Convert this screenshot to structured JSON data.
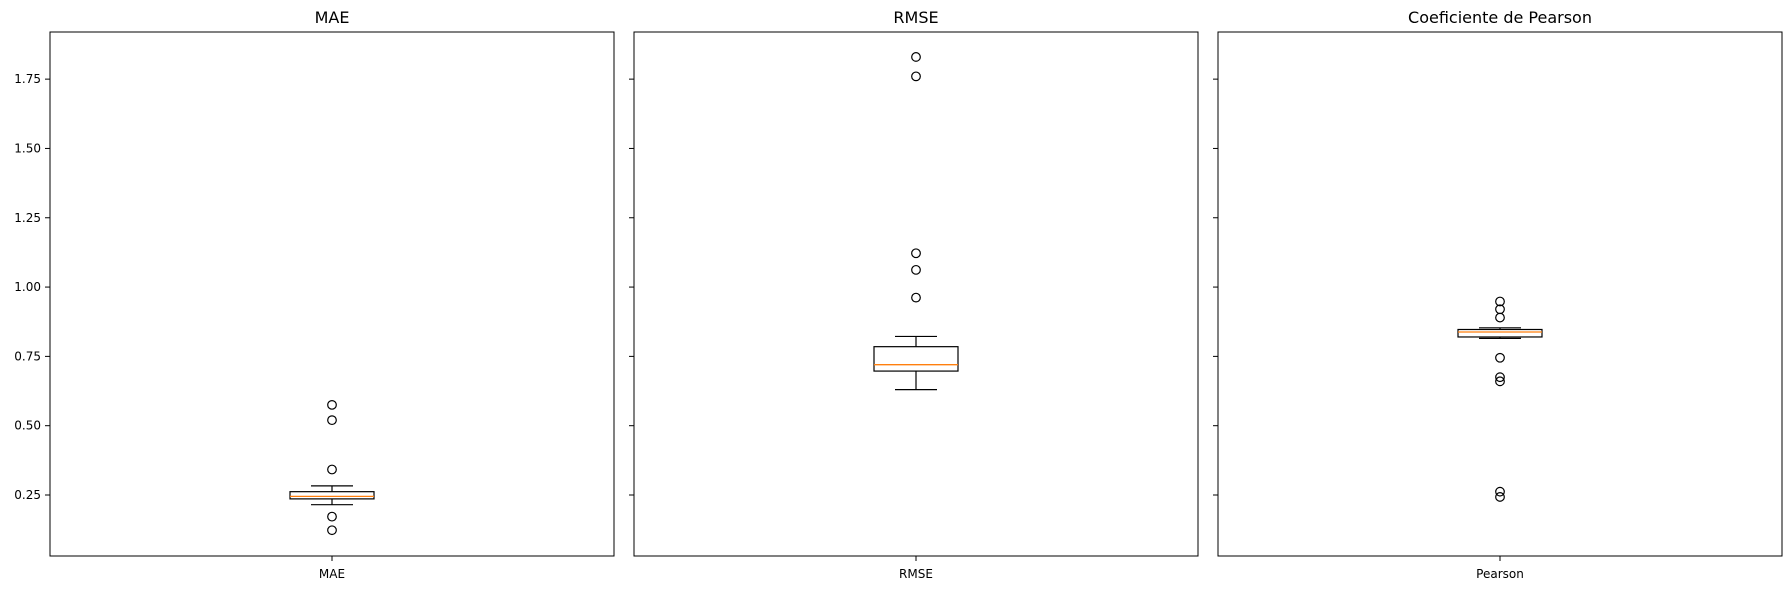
{
  "chart_data": [
    {
      "type": "box",
      "title": "MAE",
      "categories": [
        "MAE"
      ],
      "ylim": [
        0.03,
        1.92
      ],
      "yticks": [
        "0.25",
        "0.50",
        "0.75",
        "1.00",
        "1.25",
        "1.50",
        "1.75"
      ],
      "grid": false,
      "box": {
        "whisker_low": 0.215,
        "q1": 0.236,
        "median": 0.245,
        "q3": 0.262,
        "whisker_high": 0.283
      },
      "outliers": [
        0.575,
        0.52,
        0.342,
        0.172,
        0.123
      ]
    },
    {
      "type": "box",
      "title": "RMSE",
      "categories": [
        "RMSE"
      ],
      "ylim": [
        0.03,
        1.92
      ],
      "yticks": [
        "0.25",
        "0.50",
        "0.75",
        "1.00",
        "1.25",
        "1.50",
        "1.75"
      ],
      "grid": false,
      "box": {
        "whisker_low": 0.63,
        "q1": 0.697,
        "median": 0.72,
        "q3": 0.785,
        "whisker_high": 0.822
      },
      "outliers": [
        1.83,
        1.76,
        1.122,
        1.062,
        0.962
      ]
    },
    {
      "type": "box",
      "title": "Coeficiente de Pearson",
      "categories": [
        "Pearson"
      ],
      "ylim": [
        0.03,
        1.92
      ],
      "yticks": [
        "0.25",
        "0.50",
        "0.75",
        "1.00",
        "1.25",
        "1.50",
        "1.75"
      ],
      "grid": false,
      "box": {
        "whisker_low": 0.815,
        "q1": 0.82,
        "median": 0.838,
        "q3": 0.847,
        "whisker_high": 0.853
      },
      "outliers": [
        0.948,
        0.92,
        0.89,
        0.745,
        0.675,
        0.66,
        0.262,
        0.243
      ]
    }
  ],
  "colors": {
    "box": "#000000",
    "median": "#ff7f0e",
    "outlier": "#000000"
  }
}
